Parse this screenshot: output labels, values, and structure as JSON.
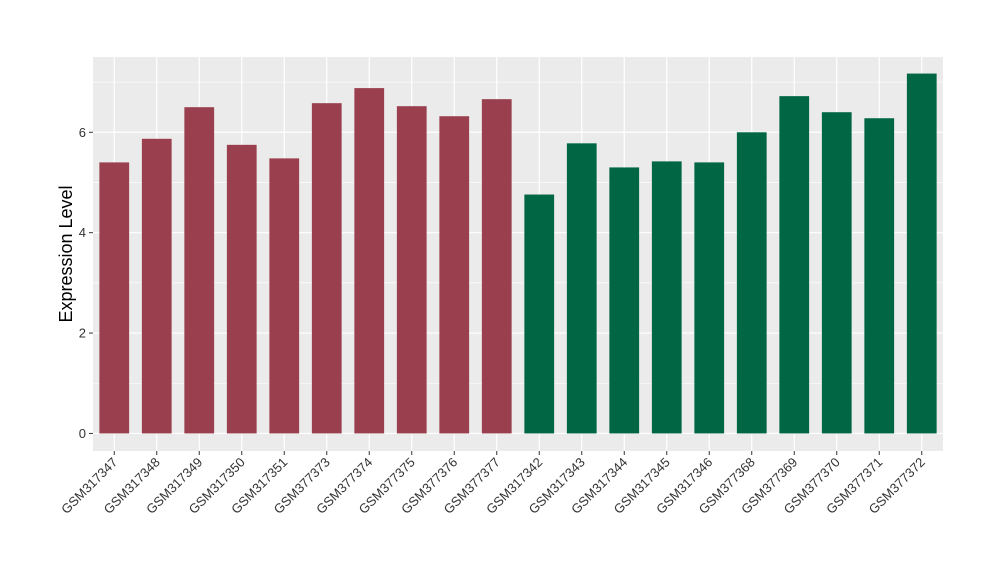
{
  "chart_data": {
    "type": "bar",
    "title": "",
    "xlabel": "",
    "ylabel": "Expression Level",
    "ylim": [
      -0.35,
      7.5
    ],
    "yticks": [
      0,
      2,
      4,
      6
    ],
    "grid": true,
    "legend": "none",
    "background_color": "#EBEBEB",
    "grid_color": "#FFFFFF",
    "categories": [
      "GSM317347",
      "GSM317348",
      "GSM317349",
      "GSM317350",
      "GSM317351",
      "GSM377373",
      "GSM377374",
      "GSM377375",
      "GSM377376",
      "GSM377377",
      "GSM317342",
      "GSM317343",
      "GSM317344",
      "GSM317345",
      "GSM317346",
      "GSM377368",
      "GSM377369",
      "GSM377370",
      "GSM377371",
      "GSM377372"
    ],
    "values": [
      5.4,
      5.87,
      6.5,
      5.75,
      5.48,
      6.58,
      6.88,
      6.52,
      6.32,
      6.66,
      4.76,
      5.78,
      5.3,
      5.42,
      5.4,
      6.0,
      6.72,
      6.4,
      6.28,
      7.17
    ],
    "groups": [
      {
        "color": "#9A3F4E",
        "count": 10
      },
      {
        "color": "#006644",
        "count": 10
      }
    ]
  }
}
